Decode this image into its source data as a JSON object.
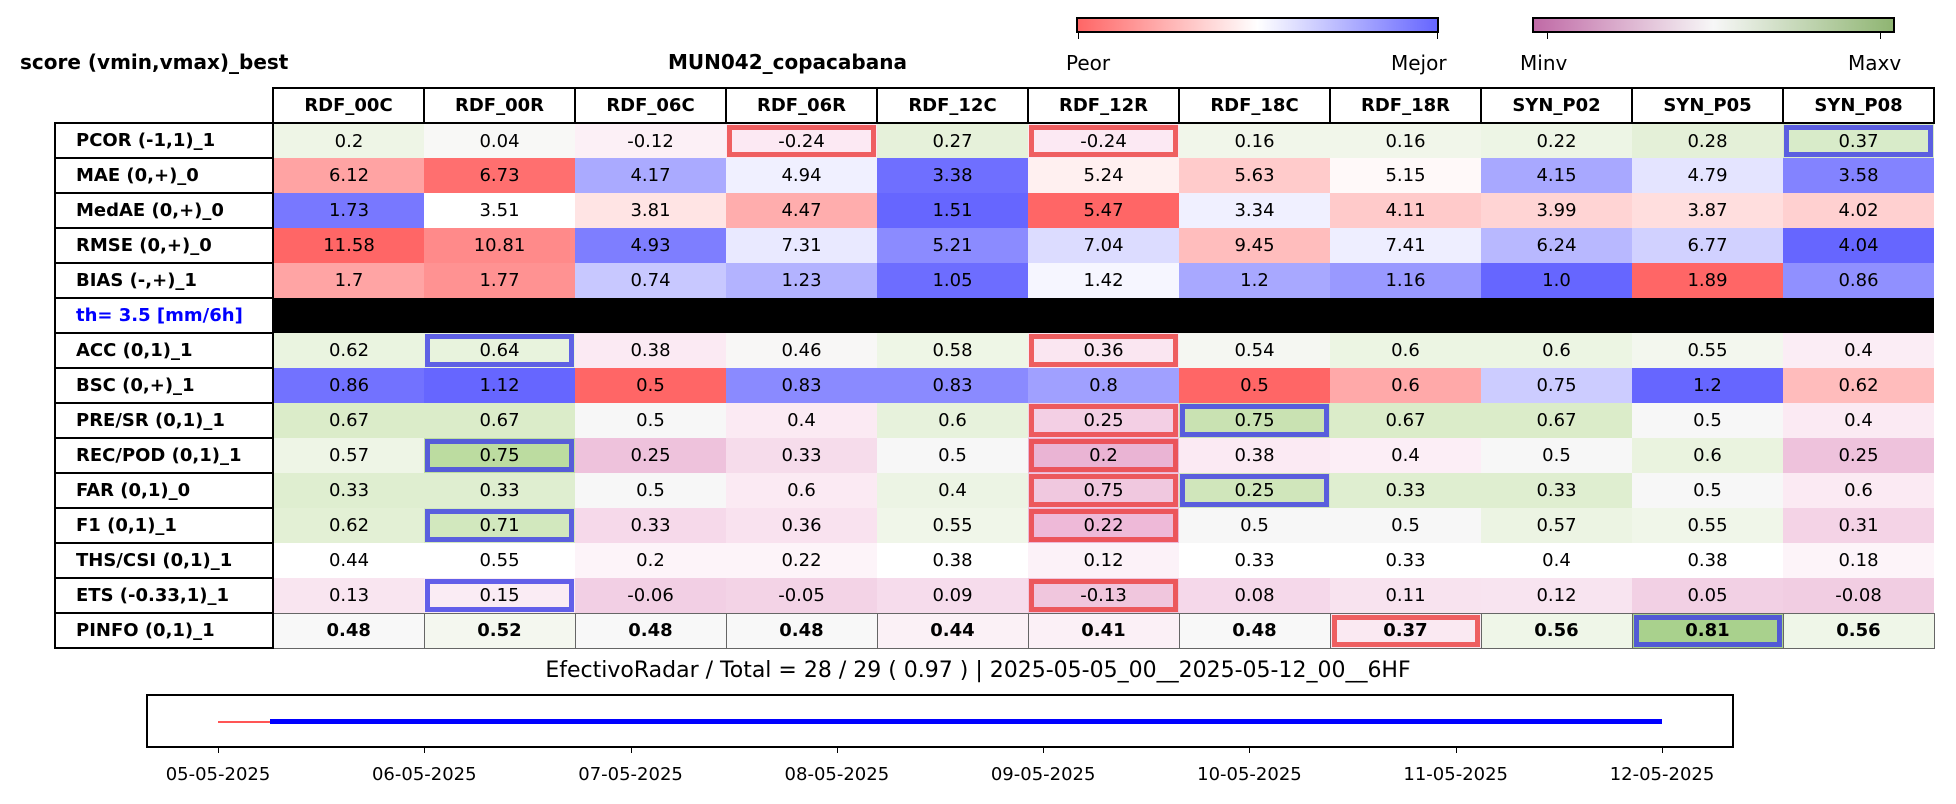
{
  "header": {
    "left_title": "score (vmin,vmax)_best",
    "center_title": "MUN042_copacabana"
  },
  "colorbars": [
    {
      "low_label": "Peor",
      "high_label": "Mejor",
      "colors": [
        "#ff6666",
        "#ffffff",
        "#6666ff"
      ]
    },
    {
      "low_label": "Minv",
      "high_label": "Maxv",
      "colors": [
        "#c06aa6",
        "#f7f7f7",
        "#8fb572"
      ]
    }
  ],
  "summary": "EfectivoRadar / Total  =  28 / 29 ( 0.97 ) | 2025-05-05_00__2025-05-12_00__6HF",
  "chart_data": {
    "type": "table",
    "columns": [
      "RDF_00C",
      "RDF_00R",
      "RDF_06C",
      "RDF_06R",
      "RDF_12C",
      "RDF_12R",
      "RDF_18C",
      "RDF_18R",
      "SYN_P02",
      "SYN_P05",
      "SYN_P08"
    ],
    "rows": [
      {
        "label": "PCOR (-1,1)_1",
        "values": [
          "0.2",
          "0.04",
          "-0.12",
          "-0.24",
          "0.27",
          "-0.24",
          "0.16",
          "0.16",
          "0.22",
          "0.28",
          "0.37"
        ],
        "colors": [
          "#eef5e6",
          "#f8f8f6",
          "#fcf0f6",
          "#fce9f3",
          "#e6f1da",
          "#fce9f3",
          "#f1f6ea",
          "#f1f6ea",
          "#edf5e5",
          "#e4f0d8",
          "#d8ebc9"
        ],
        "best": [
          10
        ],
        "worst": [
          3,
          5
        ]
      },
      {
        "label": "MAE (0,+)_0",
        "values": [
          "6.12",
          "6.73",
          "4.17",
          "4.94",
          "3.38",
          "5.24",
          "5.63",
          "5.15",
          "4.15",
          "4.79",
          "3.58"
        ],
        "colors": [
          "#ffa3a3",
          "#ff6f6f",
          "#aaaaff",
          "#f0f0ff",
          "#6f6fff",
          "#fff0f0",
          "#ffcbcb",
          "#fff9f9",
          "#a8a8ff",
          "#e4e4ff",
          "#8383ff"
        ],
        "best": [],
        "worst": []
      },
      {
        "label": "MedAE (0,+)_0",
        "values": [
          "1.73",
          "3.51",
          "3.81",
          "4.47",
          "1.51",
          "5.47",
          "3.34",
          "4.11",
          "3.99",
          "3.87",
          "4.02"
        ],
        "colors": [
          "#7878ff",
          "#ffffff",
          "#ffe4e4",
          "#ffadad",
          "#6666ff",
          "#ff6666",
          "#f0f0ff",
          "#ffcaca",
          "#ffd4d4",
          "#ffdede",
          "#ffd0d0"
        ],
        "best": [],
        "worst": []
      },
      {
        "label": "RMSE (0,+)_0",
        "values": [
          "11.58",
          "10.81",
          "4.93",
          "7.31",
          "5.21",
          "7.04",
          "9.45",
          "7.41",
          "6.24",
          "6.77",
          "4.04"
        ],
        "colors": [
          "#ff6666",
          "#ff8a8a",
          "#7e7eff",
          "#e9e9ff",
          "#8b8bff",
          "#dcdcff",
          "#ffbdbd",
          "#eeeeff",
          "#b8b8ff",
          "#d1d1ff",
          "#6666ff"
        ],
        "best": [],
        "worst": []
      },
      {
        "label": "BIAS (-,+)_1",
        "values": [
          "1.7",
          "1.77",
          "0.74",
          "1.23",
          "1.05",
          "1.42",
          "1.2",
          "1.16",
          "1.0",
          "1.89",
          "0.86"
        ],
        "colors": [
          "#ffa4a4",
          "#ff9292",
          "#c8c8ff",
          "#b3b3ff",
          "#6d6dff",
          "#f6f6ff",
          "#a8a8ff",
          "#9999ff",
          "#6666ff",
          "#ff6666",
          "#9090ff"
        ],
        "best": [],
        "worst": []
      },
      {
        "label": "th= 3.5 [mm/6h]",
        "threshold": true
      },
      {
        "label": "ACC (0,1)_1",
        "values": [
          "0.62",
          "0.64",
          "0.38",
          "0.46",
          "0.58",
          "0.36",
          "0.54",
          "0.6",
          "0.6",
          "0.55",
          "0.4"
        ],
        "colors": [
          "#eaf4e0",
          "#e8f3dd",
          "#fbeaf3",
          "#f8f7f6",
          "#eef6e6",
          "#fae6f1",
          "#f5f7f2",
          "#ecf5e3",
          "#ecf5e3",
          "#f3f7ee",
          "#fbedf5"
        ],
        "best": [
          1
        ],
        "worst": [
          5
        ]
      },
      {
        "label": "BSC (0,+)_1",
        "values": [
          "0.86",
          "1.12",
          "0.5",
          "0.83",
          "0.83",
          "0.8",
          "0.5",
          "0.6",
          "0.75",
          "1.2",
          "0.62"
        ],
        "colors": [
          "#7272ff",
          "#6666ff",
          "#ff6666",
          "#8a8aff",
          "#8a8aff",
          "#a0a0ff",
          "#ff6666",
          "#ffa9a9",
          "#ccccff",
          "#6666ff",
          "#ffbcbc"
        ],
        "best": [],
        "worst": []
      },
      {
        "label": "PRE/SR (0,1)_1",
        "values": [
          "0.67",
          "0.67",
          "0.5",
          "0.4",
          "0.6",
          "0.25",
          "0.75",
          "0.67",
          "0.67",
          "0.5",
          "0.4"
        ],
        "colors": [
          "#dbecc9",
          "#dbecc9",
          "#f7f7f7",
          "#fbeaf3",
          "#e7f2dc",
          "#f3cfe4",
          "#c9e2b2",
          "#dbecc9",
          "#dbecc9",
          "#f7f7f7",
          "#fbeaf3"
        ],
        "best": [
          6
        ],
        "worst": [
          5
        ]
      },
      {
        "label": "REC/POD (0,1)_1",
        "values": [
          "0.57",
          "0.75",
          "0.25",
          "0.33",
          "0.5",
          "0.2",
          "0.38",
          "0.4",
          "0.5",
          "0.6",
          "0.25"
        ],
        "colors": [
          "#eef5e6",
          "#bcdca0",
          "#eec2dc",
          "#f6dceb",
          "#f7f7f7",
          "#eab4d4",
          "#fbeaf3",
          "#fceef6",
          "#f7f7f7",
          "#eaf3df",
          "#eec2dc"
        ],
        "best": [
          1
        ],
        "worst": [
          5
        ]
      },
      {
        "label": "FAR (0,1)_0",
        "values": [
          "0.33",
          "0.33",
          "0.5",
          "0.6",
          "0.4",
          "0.75",
          "0.25",
          "0.33",
          "0.33",
          "0.5",
          "0.6"
        ],
        "colors": [
          "#dfeed0",
          "#dfeed0",
          "#f7f7f7",
          "#fbeaf3",
          "#ecf4e4",
          "#f0c8df",
          "#d0e6bb",
          "#dfeed0",
          "#dfeed0",
          "#f7f7f7",
          "#fbeaf3"
        ],
        "best": [
          6
        ],
        "worst": [
          5
        ]
      },
      {
        "label": "F1 (0,1)_1",
        "values": [
          "0.62",
          "0.71",
          "0.33",
          "0.36",
          "0.55",
          "0.22",
          "0.5",
          "0.5",
          "0.57",
          "0.55",
          "0.31"
        ],
        "colors": [
          "#e3f0d5",
          "#d2e8be",
          "#f6d9ea",
          "#f9e2ef",
          "#f0f6e9",
          "#eeb9d8",
          "#f7f7f7",
          "#f7f7f7",
          "#ecf4e3",
          "#f0f6e9",
          "#f4d3e6"
        ],
        "best": [
          1
        ],
        "worst": [
          5
        ]
      },
      {
        "label": "THS/CSI (0,1)_1",
        "values": [
          "0.44",
          "0.55",
          "0.2",
          "0.22",
          "0.38",
          "0.12",
          "0.33",
          "0.33",
          "0.4",
          "0.38",
          "0.18"
        ],
        "colors": [
          "#ffffff",
          "#ffffff",
          "#fdf4f9",
          "#fdf4f9",
          "#ffffff",
          "#fcf2f8",
          "#ffffff",
          "#ffffff",
          "#ffffff",
          "#ffffff",
          "#fdf4f9"
        ],
        "best": [],
        "worst": []
      },
      {
        "label": "ETS (-0.33,1)_1",
        "values": [
          "0.13",
          "0.15",
          "-0.06",
          "-0.05",
          "0.09",
          "-0.13",
          "0.08",
          "0.11",
          "0.12",
          "0.05",
          "-0.08"
        ],
        "colors": [
          "#f9e5f0",
          "#faecf4",
          "#f2cfe4",
          "#f3d3e6",
          "#f6dcec",
          "#f0c6dd",
          "#f5d8ea",
          "#f8e3ef",
          "#f8e4f0",
          "#f2d0e4",
          "#f1cde2"
        ],
        "best": [
          1
        ],
        "worst": [
          5
        ]
      },
      {
        "label": "PINFO (0,1)_1",
        "bold": true,
        "values": [
          "0.48",
          "0.52",
          "0.48",
          "0.48",
          "0.44",
          "0.41",
          "0.48",
          "0.37",
          "0.56",
          "0.81",
          "0.56"
        ],
        "colors": [
          "#f8f8f8",
          "#f4f7ef",
          "#f8f8f8",
          "#f8f8f8",
          "#fbf1f6",
          "#fbf0f6",
          "#f8f8f8",
          "#fae9f2",
          "#eff6e8",
          "#a9d18d",
          "#eff6e8"
        ],
        "best": [
          9
        ],
        "worst": [
          7
        ]
      }
    ]
  },
  "timeline": {
    "dates": [
      "05-05-2025",
      "06-05-2025",
      "07-05-2025",
      "08-05-2025",
      "09-05-2025",
      "10-05-2025",
      "11-05-2025",
      "12-05-2025"
    ],
    "start": 0,
    "end": 7,
    "missing_end": 0.25,
    "present_color": "#0000ff",
    "missing_color": "#ff5555"
  }
}
